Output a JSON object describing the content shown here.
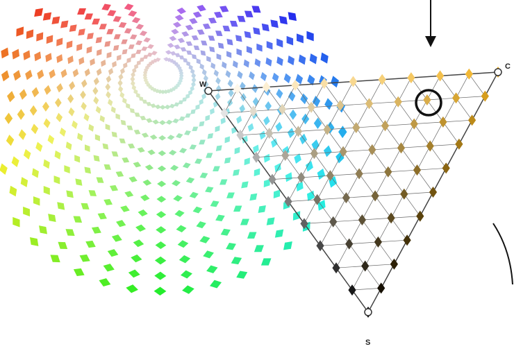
{
  "labels": {
    "white": "W",
    "chromatic": "C",
    "black": "S"
  }
}
